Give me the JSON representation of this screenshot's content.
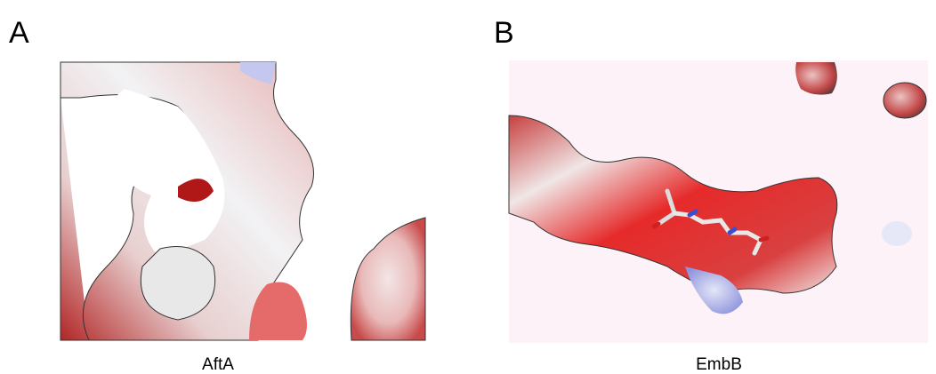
{
  "panels": [
    {
      "letter": "A",
      "caption": "AftA"
    },
    {
      "letter": "B",
      "caption": "EmbB"
    }
  ]
}
